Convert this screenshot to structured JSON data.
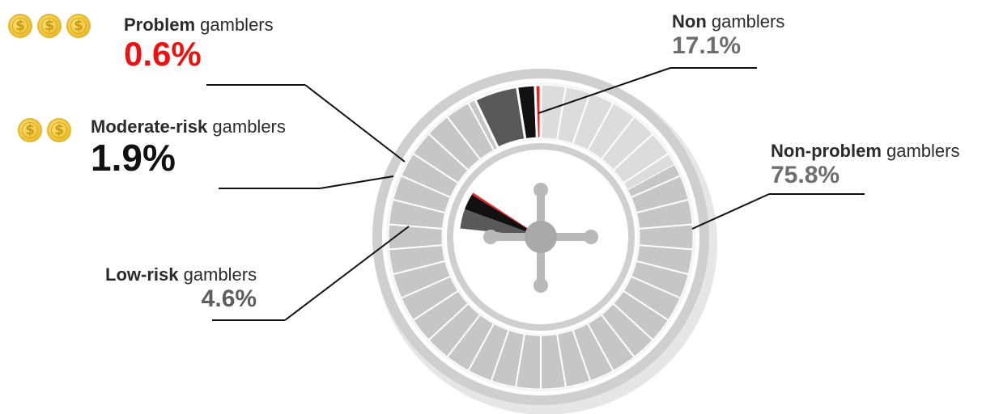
{
  "chart_data": {
    "type": "pie",
    "categories": [
      "Non gamblers",
      "Non-problem gamblers",
      "Low-risk gamblers",
      "Moderate-risk gamblers",
      "Problem gamblers"
    ],
    "values": [
      17.1,
      75.8,
      4.6,
      1.9,
      0.6
    ],
    "value_labels": [
      "17.1%",
      "75.8%",
      "4.6%",
      "1.9%",
      "0.6%"
    ],
    "labels": [
      {
        "bold": "Non",
        "rest": " gamblers",
        "value": "17.1%",
        "color": "#6e6e6e",
        "slice_color": "#dcdcdc"
      },
      {
        "bold": "Non-problem",
        "rest": " gamblers",
        "value": "75.8%",
        "color": "#6e6e6e",
        "slice_color": "#c6c6c6"
      },
      {
        "bold": "Low-risk",
        "rest": " gamblers",
        "value": "4.6%",
        "color": "#5e5e5e",
        "slice_color": "#595959"
      },
      {
        "bold": "Moderate-risk",
        "rest": " gamblers",
        "value": "1.9%",
        "color": "#111111",
        "slice_color": "#111111"
      },
      {
        "bold": "Problem",
        "rest": " gamblers",
        "value": "0.6%",
        "color": "#ee1111",
        "slice_color": "#ee2222"
      }
    ],
    "coins": {
      "problem": 3,
      "moderate_risk": 2,
      "symbol": "$"
    },
    "legend": "none"
  }
}
